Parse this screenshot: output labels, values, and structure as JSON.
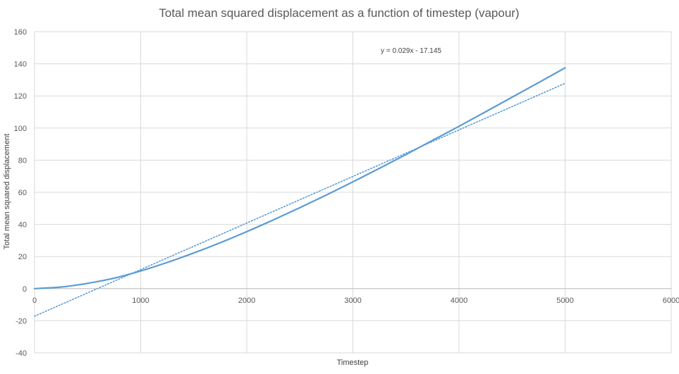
{
  "chart_data": {
    "type": "line",
    "title": "Total mean squared displacement as a function of timestep (vapour)",
    "xlabel": "Timestep",
    "ylabel": "Total mean squared displacement",
    "xlim": [
      0,
      6000
    ],
    "ylim": [
      -40,
      160
    ],
    "x_ticks": [
      0,
      1000,
      2000,
      3000,
      4000,
      5000,
      6000
    ],
    "y_ticks": [
      -40,
      -20,
      0,
      20,
      40,
      60,
      80,
      100,
      120,
      140,
      160
    ],
    "grid": true,
    "legend": "none",
    "series": [
      {
        "color": "#5B9BD5",
        "x": [
          0,
          250,
          500,
          750,
          1000,
          1250,
          1500,
          1750,
          2000,
          2250,
          2500,
          2750,
          3000,
          3250,
          3500,
          3750,
          4000,
          4250,
          4500,
          4750,
          5000
        ],
        "y": [
          0,
          1,
          3.3,
          6.5,
          11,
          16.3,
          22.2,
          28.6,
          35.5,
          42.8,
          50.4,
          58.3,
          66.5,
          74.9,
          83.5,
          92.3,
          101.1,
          110.1,
          119.2,
          128.3,
          137.5
        ]
      }
    ],
    "trendline": {
      "kind": "linear",
      "equation": "y = 0.029x - 17.145",
      "slope": 0.029,
      "intercept": -17.145,
      "x_range": [
        0,
        5000
      ],
      "style": "dotted",
      "color": "#5B9BD5"
    }
  }
}
